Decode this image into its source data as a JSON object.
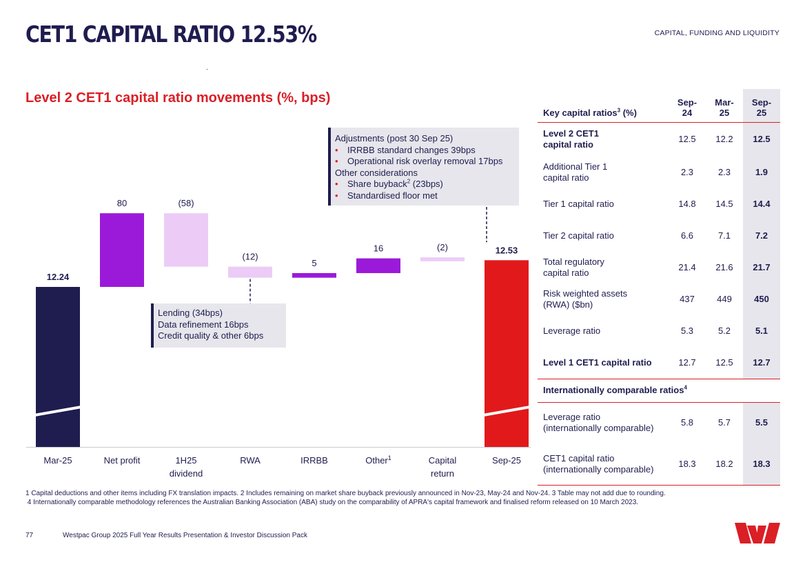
{
  "page": {
    "title": "CET1 CAPITAL RATIO 12.53%",
    "section": "CAPITAL, FUNDING AND LIQUIDITY",
    "page_number": "77",
    "footer": "Westpac Group 2025 Full Year Results Presentation & Investor Discussion Pack"
  },
  "colors": {
    "navy": "#1f1c4f",
    "purple": "#9b1ad9",
    "lilac": "#ecccf7",
    "red": "#e2191b",
    "brand_red": "#da1f26",
    "grey": "#e6e6ec"
  },
  "chart_data": {
    "type": "bar",
    "subtype": "waterfall",
    "title": "Level 2 CET1 capital ratio movements (%, bps)",
    "categories": [
      "Mar-25",
      "Net profit",
      "1H25 dividend",
      "RWA",
      "IRRBB",
      "Other",
      "Capital return",
      "Sep-25"
    ],
    "category_lines": [
      [
        "Mar-25"
      ],
      [
        "Net profit"
      ],
      [
        "1H25",
        "dividend"
      ],
      [
        "RWA"
      ],
      [
        "IRRBB"
      ],
      [
        "Other"
      ],
      [
        "Capital",
        "return"
      ],
      [
        "Sep-25"
      ]
    ],
    "category_sup": [
      "",
      "",
      "",
      "",
      "",
      "1",
      "",
      ""
    ],
    "values": [
      12.24,
      80,
      -58,
      -12,
      5,
      16,
      -2,
      12.53
    ],
    "units": [
      "%",
      "bps",
      "bps",
      "bps",
      "bps",
      "bps",
      "bps",
      "%"
    ],
    "value_labels": [
      "12.24",
      "80",
      "(58)",
      "(12)",
      "5",
      "16",
      "(2)",
      "12.53"
    ],
    "bar_kinds": [
      "total",
      "increase",
      "decrease",
      "decrease",
      "increase",
      "increase",
      "decrease",
      "total"
    ],
    "axis_break": true,
    "xlabel": "",
    "ylabel": ""
  },
  "callouts": {
    "lending": [
      "Lending (34bps)",
      "Data refinement 16bps",
      "Credit quality & other 6bps"
    ],
    "adjustments": {
      "heading": "Adjustments (post 30 Sep 25)",
      "items": [
        "IRRBB standard changes 39bps",
        "Operational risk overlay removal 17bps"
      ],
      "heading2": "Other considerations",
      "items2_1": "Share buyback",
      "items2_1_sup": "2",
      "items2_1_rest": " (23bps)",
      "items2_2": "Standardised floor met"
    }
  },
  "table": {
    "header_label": "Key capital ratios",
    "header_sup": "3",
    "header_suffix": " (%)",
    "col1": [
      "Sep-",
      "24"
    ],
    "col2": [
      "Mar-",
      "25"
    ],
    "col3": [
      "Sep-",
      "25"
    ],
    "rows": [
      {
        "label": [
          "Level 2 CET1",
          "capital ratio"
        ],
        "v": [
          "12.5",
          "12.2",
          "12.5"
        ]
      },
      {
        "label": [
          "Additional Tier 1",
          "capital ratio"
        ],
        "v": [
          "2.3",
          "2.3",
          "1.9"
        ]
      },
      {
        "label": [
          "Tier 1 capital ratio"
        ],
        "v": [
          "14.8",
          "14.5",
          "14.4"
        ]
      },
      {
        "label": [
          "Tier 2 capital ratio"
        ],
        "v": [
          "6.6",
          "7.1",
          "7.2"
        ]
      },
      {
        "label": [
          "Total regulatory",
          "capital ratio"
        ],
        "v": [
          "21.4",
          "21.6",
          "21.7"
        ]
      },
      {
        "label": [
          "Risk weighted assets",
          "(RWA) ($bn)"
        ],
        "v": [
          "437",
          "449",
          "450"
        ]
      },
      {
        "label": [
          "Leverage ratio"
        ],
        "v": [
          "5.3",
          "5.2",
          "5.1"
        ]
      },
      {
        "label": [
          "Level 1 CET1 capital ratio"
        ],
        "v": [
          "12.7",
          "12.5",
          "12.7"
        ]
      }
    ],
    "subheader": "Internationally comparable ratios",
    "subheader_sup": "4",
    "ic_rows": [
      {
        "label": [
          "Leverage ratio",
          "(internationally comparable)"
        ],
        "v": [
          "5.8",
          "5.7",
          "5.5"
        ]
      },
      {
        "label": [
          "CET1 capital ratio",
          "(internationally comparable)"
        ],
        "v": [
          "18.3",
          "18.2",
          "18.3"
        ]
      }
    ]
  },
  "footnotes": {
    "line1": "1 Capital deductions and other items including FX translation impacts. 2 Includes remaining on market share buyback previously announced in Nov-23, May-24 and Nov-24. 3 Table may not add due to rounding.",
    "line2": " 4 Internationally comparable methodology references the Australian Banking Association (ABA) study on the comparability of APRA's capital framework and finalised reform released on 10 March 2023."
  }
}
